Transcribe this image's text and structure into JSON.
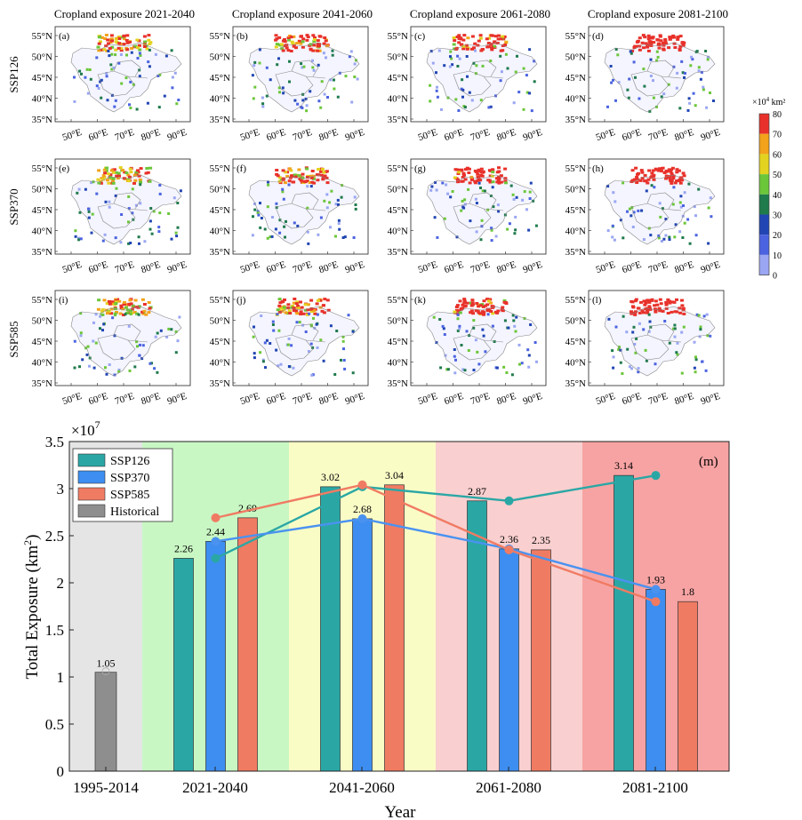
{
  "map_panels": {
    "column_titles": [
      "Cropland exposure 2021-2040",
      "Cropland exposure 2041-2060",
      "Cropland exposure 2061-2080",
      "Cropland exposure 2081-2100"
    ],
    "row_labels": [
      "SSP126",
      "SSP370",
      "SSP585"
    ],
    "panel_labels": [
      "(a)",
      "(b)",
      "(c)",
      "(d)",
      "(e)",
      "(f)",
      "(g)",
      "(h)",
      "(i)",
      "(j)",
      "(k)",
      "(l)"
    ],
    "lat_ticks": [
      "55°N",
      "50°N",
      "45°N",
      "40°N",
      "35°N"
    ],
    "lon_ticks": [
      "50°E",
      "60°E",
      "70°E",
      "80°E",
      "90°E"
    ],
    "colorbar": {
      "unit_prefix": "×10",
      "unit_exp": "4",
      "unit_suffix": " km²",
      "ticks": [
        "80",
        "70",
        "60",
        "50",
        "40",
        "30",
        "20",
        "10",
        "0"
      ],
      "colors": [
        "#e8312a",
        "#f2a21b",
        "#e3d21f",
        "#6cc63a",
        "#1f7a4c",
        "#2145b3",
        "#4b63e0",
        "#9aa6f2",
        "#ffffff"
      ]
    }
  },
  "chart_data": {
    "type": "bar",
    "panel_label": "(m)",
    "title": "",
    "xlabel": "Year",
    "ylabel_main": "Total Exposure (km",
    "ylabel_sup": "2",
    "ylabel_close": ")",
    "scale_base": "×10",
    "scale_exp": "7",
    "ylim": [
      0,
      3.5
    ],
    "yticks": [
      "0",
      "0.5",
      "1",
      "1.5",
      "2",
      "2.5",
      "3",
      "3.5"
    ],
    "categories": [
      "1995-2014",
      "2021-2040",
      "2041-2060",
      "2061-2080",
      "2081-2100"
    ],
    "series": [
      {
        "name": "SSP126",
        "color": "#2aa7a5",
        "values": [
          null,
          2.26,
          3.02,
          2.87,
          3.14
        ],
        "labels": [
          "",
          "2.26",
          "3.02",
          "2.87",
          "3.14"
        ],
        "line_color": "#2aa7a5"
      },
      {
        "name": "SSP370",
        "color": "#3d8ef0",
        "values": [
          null,
          2.44,
          2.68,
          2.36,
          1.93
        ],
        "labels": [
          "",
          "2.44",
          "2.68",
          "2.36",
          "1.93"
        ],
        "line_color": "#4a92f0"
      },
      {
        "name": "SSP585",
        "color": "#f07b63",
        "values": [
          null,
          2.69,
          3.04,
          2.35,
          1.8
        ],
        "labels": [
          "",
          "2.69",
          "3.04",
          "2.35",
          "1.8"
        ],
        "line_color": "#f07b63"
      },
      {
        "name": "Historical",
        "color": "#8e8e8e",
        "values": [
          1.05,
          null,
          null,
          null,
          null
        ],
        "labels": [
          "1.05",
          "",
          "",
          "",
          ""
        ]
      }
    ],
    "background_colors": [
      "#e5e5e5",
      "#c9f7c4",
      "#fafcc6",
      "#f9cfcf",
      "#f7a3a3"
    ],
    "legend_position": "top-left"
  }
}
